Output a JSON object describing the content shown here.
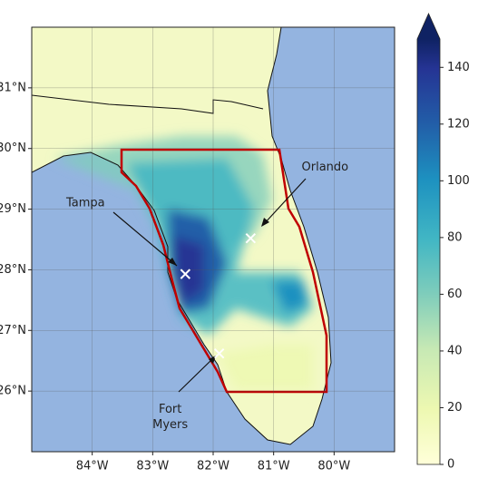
{
  "map": {
    "xlim": [
      -85,
      -79
    ],
    "ylim": [
      25,
      32
    ],
    "xticks": [
      {
        "value": -84,
        "label": "84°W"
      },
      {
        "value": -83,
        "label": "83°W"
      },
      {
        "value": -82,
        "label": "82°W"
      },
      {
        "value": -81,
        "label": "81°W"
      },
      {
        "value": -80,
        "label": "80°W"
      }
    ],
    "yticks": [
      {
        "value": 31,
        "label": "31°N"
      },
      {
        "value": 30,
        "label": "30°N"
      },
      {
        "value": 29,
        "label": "29°N"
      },
      {
        "value": 28,
        "label": "28°N"
      },
      {
        "value": 27,
        "label": "27°N"
      },
      {
        "value": 26,
        "label": "26°N"
      }
    ],
    "cities": [
      {
        "lines": [
          "Tampa"
        ],
        "lon": -82.46,
        "lat": 27.93
      },
      {
        "lines": [
          "Orlando"
        ],
        "lon": -81.38,
        "lat": 28.52
      },
      {
        "lines": [
          "Fort",
          "Myers"
        ],
        "lon": -81.9,
        "lat": 26.62
      }
    ]
  },
  "colorbar": {
    "lim": [
      0,
      150
    ],
    "ticks": [
      0,
      20,
      40,
      60,
      80,
      100,
      120,
      140
    ]
  }
}
